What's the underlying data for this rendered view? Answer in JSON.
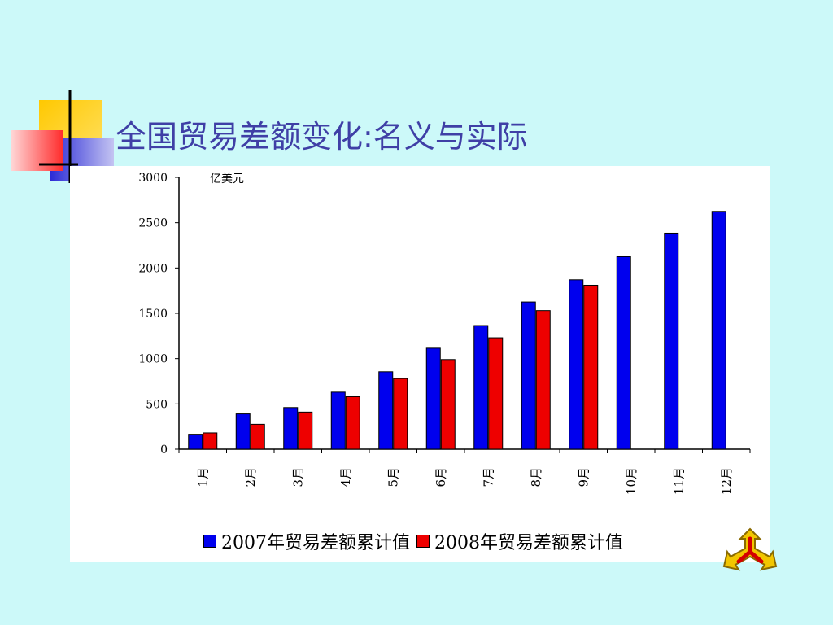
{
  "slide": {
    "title": "全国贸易差额变化:名义与实际"
  },
  "chart_data": {
    "type": "bar",
    "unit_label": "亿美元",
    "categories": [
      "1月",
      "2月",
      "3月",
      "4月",
      "5月",
      "6月",
      "7月",
      "8月",
      "9月",
      "10月",
      "11月",
      "12月"
    ],
    "series": [
      {
        "name": "2007年贸易差额累计值",
        "color": "#0000ee",
        "values": [
          165,
          390,
          460,
          630,
          855,
          1115,
          1365,
          1625,
          1870,
          2125,
          2385,
          2625
        ]
      },
      {
        "name": "2008年贸易差额累计值",
        "color": "#ee0000",
        "values": [
          180,
          275,
          410,
          580,
          780,
          990,
          1230,
          1530,
          1810,
          null,
          null,
          null
        ]
      }
    ],
    "yticks": [
      0,
      500,
      1000,
      1500,
      2000,
      2500,
      3000
    ],
    "ylim": [
      0,
      3000
    ],
    "xlabel": "",
    "ylabel": "亿美元",
    "grid": false,
    "legend_position": "bottom"
  },
  "colors": {
    "background": "#ccf9f9",
    "title": "#3f3fa6",
    "panel": "#ffffff"
  },
  "icons": {
    "logo": "tri-arrow-emblem-icon",
    "decoration": "colored-squares-decoration"
  }
}
